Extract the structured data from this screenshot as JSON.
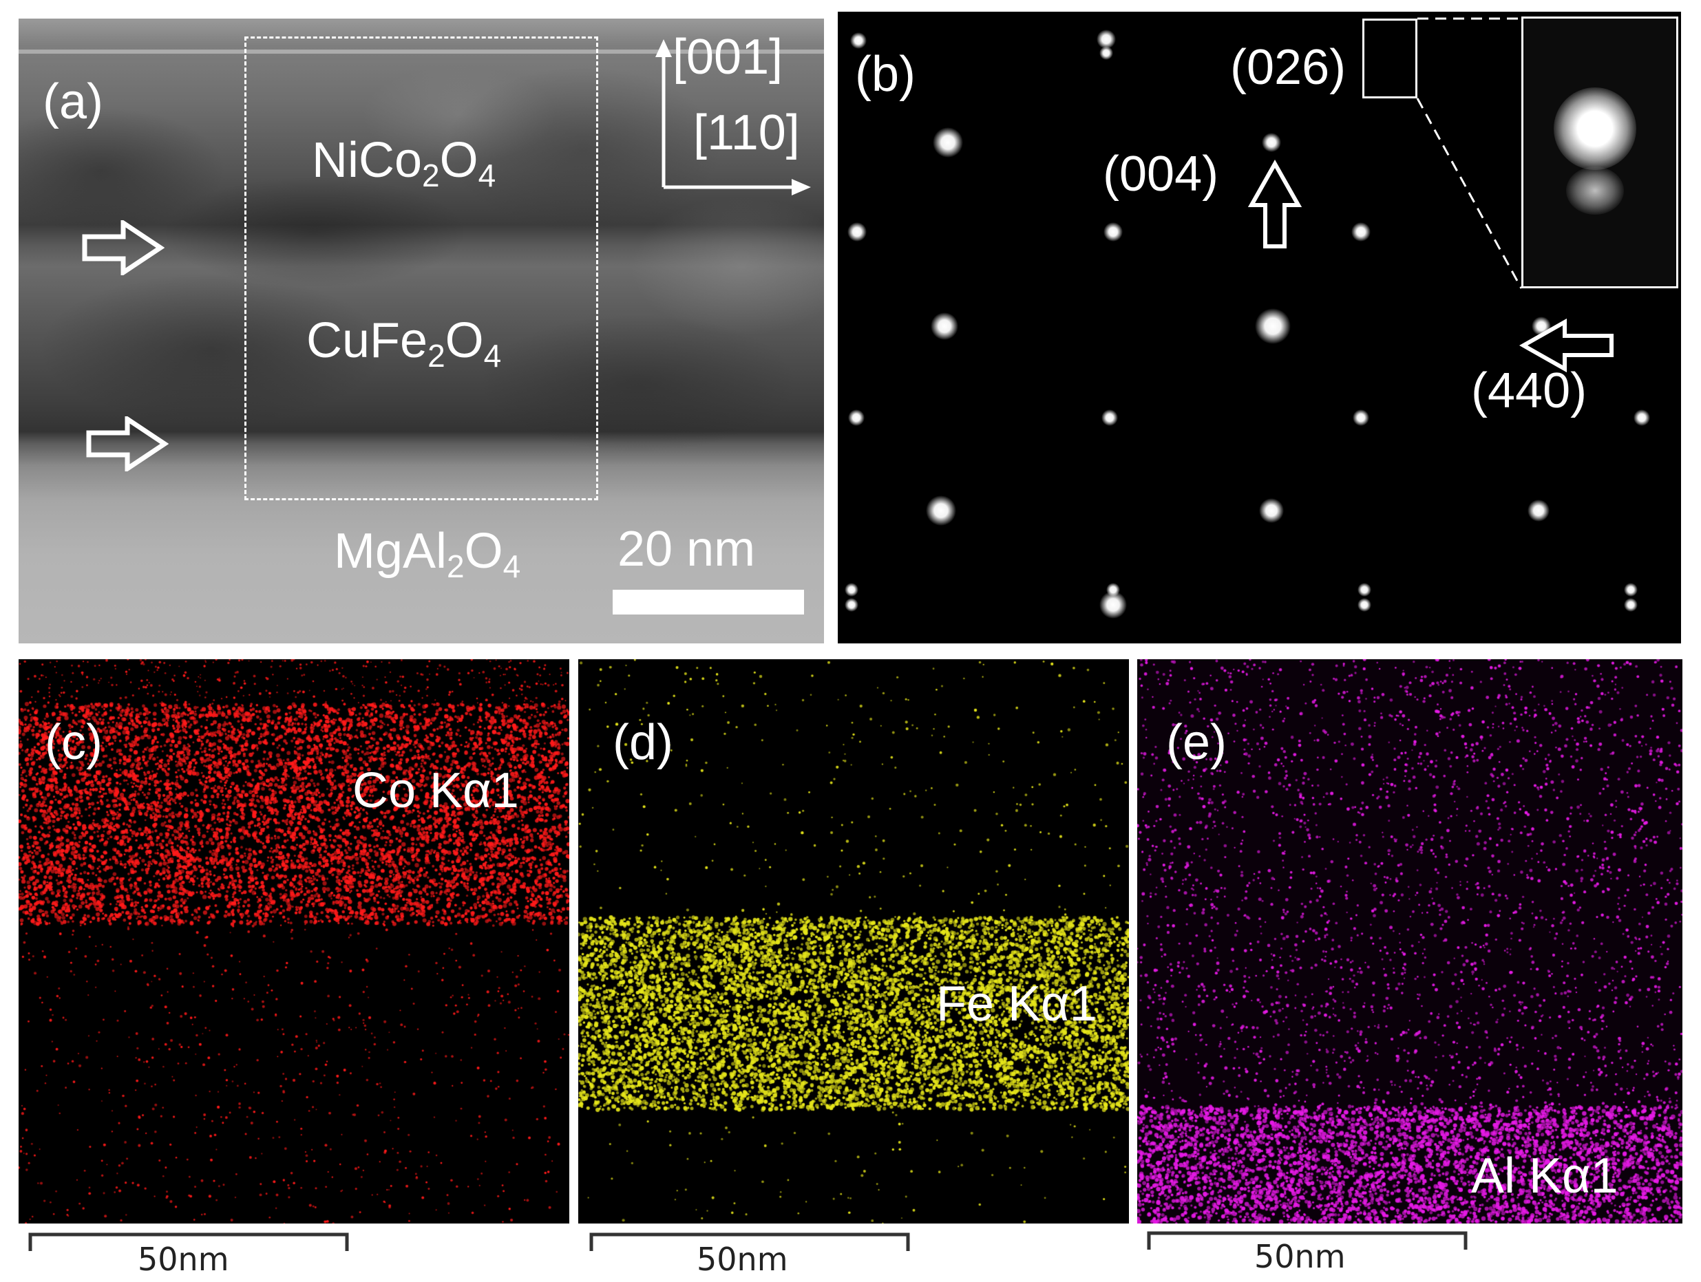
{
  "panel_a": {
    "label": "(a)",
    "layer_top": {
      "base": "NiCo",
      "sub1": "2",
      "mid": "O",
      "sub2": "4"
    },
    "layer_mid": {
      "base": "CuFe",
      "sub1": "2",
      "mid": "O",
      "sub2": "4"
    },
    "substrate": {
      "base": "MgAl",
      "sub1": "2",
      "mid": "O",
      "sub2": "4"
    },
    "axis_vertical": "[001]",
    "axis_horizontal": "[110]",
    "scale_bar": "20 nm"
  },
  "panel_b": {
    "label": "(b)",
    "spot_026": "(026)",
    "spot_004": "(004)",
    "spot_440": "(440)"
  },
  "panel_c": {
    "label": "(c)",
    "element": "Co Kα1",
    "scale_bar": "50nm",
    "color": "#ff1a1a"
  },
  "panel_d": {
    "label": "(d)",
    "element": "Fe Kα1",
    "scale_bar": "50nm",
    "color": "#e6e61a"
  },
  "panel_e": {
    "label": "(e)",
    "element": "Al Kα1",
    "scale_bar": "50nm",
    "color": "#e61ae6"
  }
}
